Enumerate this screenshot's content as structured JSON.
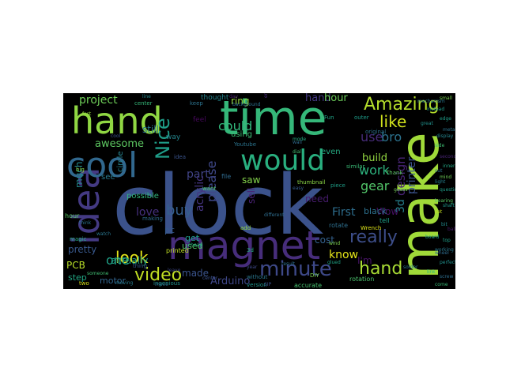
{
  "background": "#000000",
  "figure_background": "#ffffff",
  "palette": {
    "teal": "#2a788e",
    "green": "#35b779",
    "lime": "#a0da39",
    "indigo": "#3b528b",
    "purple": "#472d7b",
    "yellow": "#fde725",
    "cyan": "#21918c"
  },
  "words": [
    {
      "text": "clock",
      "color": "#3b528b"
    },
    {
      "text": "make",
      "color": "#a0da39"
    },
    {
      "text": "time",
      "color": "#35b779"
    },
    {
      "text": "hand",
      "color": "#90d743"
    },
    {
      "text": "magnet",
      "color": "#472d7b"
    },
    {
      "text": "idea",
      "color": "#443a83"
    },
    {
      "text": "cool",
      "color": "#31688e"
    },
    {
      "text": "would",
      "color": "#29af7f"
    },
    {
      "text": "Amazing",
      "color": "#b5de2b"
    },
    {
      "text": "minute",
      "color": "#3e4989"
    },
    {
      "text": "video",
      "color": "#c2df23"
    },
    {
      "text": "project",
      "color": "#6ece58"
    },
    {
      "text": "Nice",
      "color": "#1f9e89"
    },
    {
      "text": "look",
      "color": "#e4e419"
    },
    {
      "text": "design",
      "color": "#482475"
    },
    {
      "text": "3d",
      "color": "#27808e"
    },
    {
      "text": "printer",
      "color": "#3b528b"
    },
    {
      "text": "hand",
      "color": "#443983"
    },
    {
      "text": "hour",
      "color": "#6ccd5a"
    },
    {
      "text": "hand",
      "color": "#a8db34"
    },
    {
      "text": "like",
      "color": "#d0e11c"
    },
    {
      "text": "bro",
      "color": "#2c728e"
    },
    {
      "text": "use",
      "color": "#472c7a"
    },
    {
      "text": "one",
      "color": "#1fa187"
    },
    {
      "text": "please",
      "color": "#3f4889"
    },
    {
      "text": "buy",
      "color": "#355f8d"
    },
    {
      "text": "part",
      "color": "#414487"
    },
    {
      "text": "could",
      "color": "#32b67a"
    },
    {
      "text": "really",
      "color": "#3d4e8a"
    },
    {
      "text": "work",
      "color": "#2db27d"
    },
    {
      "text": "gear",
      "color": "#52c569"
    },
    {
      "text": "know",
      "color": "#e5e419"
    },
    {
      "text": "much",
      "color": "#23888e"
    },
    {
      "text": "love",
      "color": "#46307e"
    },
    {
      "text": "still",
      "color": "#2a768e"
    },
    {
      "text": "awesome",
      "color": "#5ec962"
    },
    {
      "text": "First",
      "color": "#2e6e8e"
    },
    {
      "text": "ring",
      "color": "#95d840"
    },
    {
      "text": "product",
      "color": "#25848e"
    },
    {
      "text": "Arduino",
      "color": "#3f4788"
    },
    {
      "text": "PCB",
      "color": "#b8de29"
    },
    {
      "text": "pretty",
      "color": "#38588c"
    },
    {
      "text": "actually",
      "color": "#20a386"
    },
    {
      "text": "motor",
      "color": "#32658e"
    },
    {
      "text": "step",
      "color": "#22a884"
    },
    {
      "text": "need",
      "color": "#481d6f"
    },
    {
      "text": "build",
      "color": "#93d741"
    },
    {
      "text": "Wow",
      "color": "#471164"
    },
    {
      "text": "made",
      "color": "#3a538b"
    },
    {
      "text": "acrylic",
      "color": "#453581"
    },
    {
      "text": "circle",
      "color": "#26828e"
    },
    {
      "text": "sell",
      "color": "#482173"
    },
    {
      "text": "saw",
      "color": "#84d44b"
    },
    {
      "text": "I'm",
      "color": "#481467"
    },
    {
      "text": "cost",
      "color": "#34618d"
    },
    {
      "text": "used",
      "color": "#52c569"
    },
    {
      "text": "get",
      "color": "#1e9b8a"
    },
    {
      "text": "pc",
      "color": "#365c8d"
    },
    {
      "text": "thought",
      "color": "#25858e"
    },
    {
      "text": "using",
      "color": "#3dbc74"
    },
    {
      "text": "possible",
      "color": "#31b57b"
    },
    {
      "text": "black",
      "color": "#2d708e"
    },
    {
      "text": "even",
      "color": "#25ab82"
    },
    {
      "text": "see",
      "color": "#297a8e"
    },
    {
      "text": "hour",
      "color": "#58c765"
    },
    {
      "text": "printed",
      "color": "#c0df25"
    },
    {
      "text": "magic",
      "color": "#27ad81"
    },
    {
      "text": "two",
      "color": "#d8e219"
    },
    {
      "text": "tell",
      "color": "#1fa088"
    },
    {
      "text": "rotate",
      "color": "#2e6f8e"
    },
    {
      "text": "accurate",
      "color": "#46c06f"
    },
    {
      "text": "rotation",
      "color": "#4ac16d"
    },
    {
      "text": "version",
      "color": "#1f968b"
    },
    {
      "text": "DIY",
      "color": "#7ad151"
    },
    {
      "text": "ingenious",
      "color": "#20928c"
    },
    {
      "text": "3d",
      "color": "#26ad81"
    },
    {
      "text": "thumbnail",
      "color": "#8bd646"
    },
    {
      "text": "without",
      "color": "#2a778e"
    },
    {
      "text": "Youtube",
      "color": "#2b748e"
    },
    {
      "text": "similar",
      "color": "#3aba76"
    },
    {
      "text": "outer",
      "color": "#1e9c89"
    },
    {
      "text": "Thank",
      "color": "#5cc863"
    },
    {
      "text": "Wrench",
      "color": "#dde318"
    },
    {
      "text": "original",
      "color": "#2c718e"
    },
    {
      "text": "way",
      "color": "#24878e"
    },
    {
      "text": "feel",
      "color": "#46085c"
    },
    {
      "text": "keep",
      "color": "#2c738e"
    },
    {
      "text": "center",
      "color": "#35b779"
    },
    {
      "text": "thing",
      "color": "#355e8d"
    },
    {
      "text": "making",
      "color": "#2f6b8e"
    },
    {
      "text": "file",
      "color": "#306a8e"
    },
    {
      "text": "add",
      "color": "#95d840"
    },
    {
      "text": "idea",
      "color": "#3a548c"
    },
    {
      "text": "big",
      "color": "#89d548"
    },
    {
      "text": "want",
      "color": "#50c46a"
    },
    {
      "text": "Fun",
      "color": "#20a486"
    },
    {
      "text": "piece",
      "color": "#1f9f88"
    },
    {
      "text": "result",
      "color": "#2d708e"
    },
    {
      "text": "solder",
      "color": "#2a788e"
    },
    {
      "text": "engineering",
      "color": "#482979"
    },
    {
      "text": "someone",
      "color": "#40bd72"
    },
    {
      "text": "different",
      "color": "#2e6d8e"
    },
    {
      "text": "watch",
      "color": "#2a768e"
    },
    {
      "text": "instead",
      "color": "#1f9a8a"
    },
    {
      "text": "glued",
      "color": "#20a386"
    },
    {
      "text": "SIP",
      "color": "#3b528b"
    },
    {
      "text": "set",
      "color": "#c5e021"
    },
    {
      "text": "day",
      "color": "#481f70"
    },
    {
      "text": "link",
      "color": "#2db27d"
    },
    {
      "text": "wind",
      "color": "#7fd34e"
    },
    {
      "text": "wheel",
      "color": "#2f6c8e"
    },
    {
      "text": "mode",
      "color": "#27ad81"
    },
    {
      "text": "leave",
      "color": "#3f4788"
    },
    {
      "text": "guess",
      "color": "#77d153"
    },
    {
      "text": "display",
      "color": "#25858e"
    },
    {
      "text": "board",
      "color": "#1fa287"
    },
    {
      "text": "come",
      "color": "#38b977"
    },
    {
      "text": "think",
      "color": "#2c738e"
    },
    {
      "text": "cheap",
      "color": "#21a685"
    },
    {
      "text": "easy",
      "color": "#365d8d"
    },
    {
      "text": "dial",
      "color": "#43bf71"
    },
    {
      "text": "cut",
      "color": "#2b758e"
    },
    {
      "text": "wall",
      "color": "#306a8e"
    },
    {
      "text": "light",
      "color": "#26818e"
    },
    {
      "text": "fast",
      "color": "#95d840"
    },
    {
      "text": "second",
      "color": "#482475"
    },
    {
      "text": "mechanism",
      "color": "#2a788e"
    },
    {
      "text": "bit",
      "color": "#238a8d"
    },
    {
      "text": "bearing",
      "color": "#5ac864"
    },
    {
      "text": "move",
      "color": "#2d718e"
    },
    {
      "text": "question",
      "color": "#1e9d89"
    },
    {
      "text": "cool",
      "color": "#3b528b"
    },
    {
      "text": "top",
      "color": "#1fa088"
    },
    {
      "text": "perfect",
      "color": "#21908d"
    },
    {
      "text": "side",
      "color": "#3ebc73"
    },
    {
      "text": "working",
      "color": "#29798e"
    },
    {
      "text": "great",
      "color": "#21918c"
    },
    {
      "text": "moving",
      "color": "#287c8e"
    },
    {
      "text": "center",
      "color": "#3b528b"
    },
    {
      "text": "background",
      "color": "#2c728e"
    },
    {
      "text": "edge",
      "color": "#1f9e89"
    },
    {
      "text": "line",
      "color": "#23898e"
    },
    {
      "text": "mind",
      "color": "#6ece58"
    },
    {
      "text": "year",
      "color": "#3e4a89"
    },
    {
      "text": "small",
      "color": "#7ad151"
    },
    {
      "text": "screw",
      "color": "#2e6e8e"
    },
    {
      "text": "inner",
      "color": "#22a884"
    },
    {
      "text": "metal",
      "color": "#2b748e"
    },
    {
      "text": "shaft",
      "color": "#1f968b"
    },
    {
      "text": "ball",
      "color": "#481a6c"
    }
  ]
}
